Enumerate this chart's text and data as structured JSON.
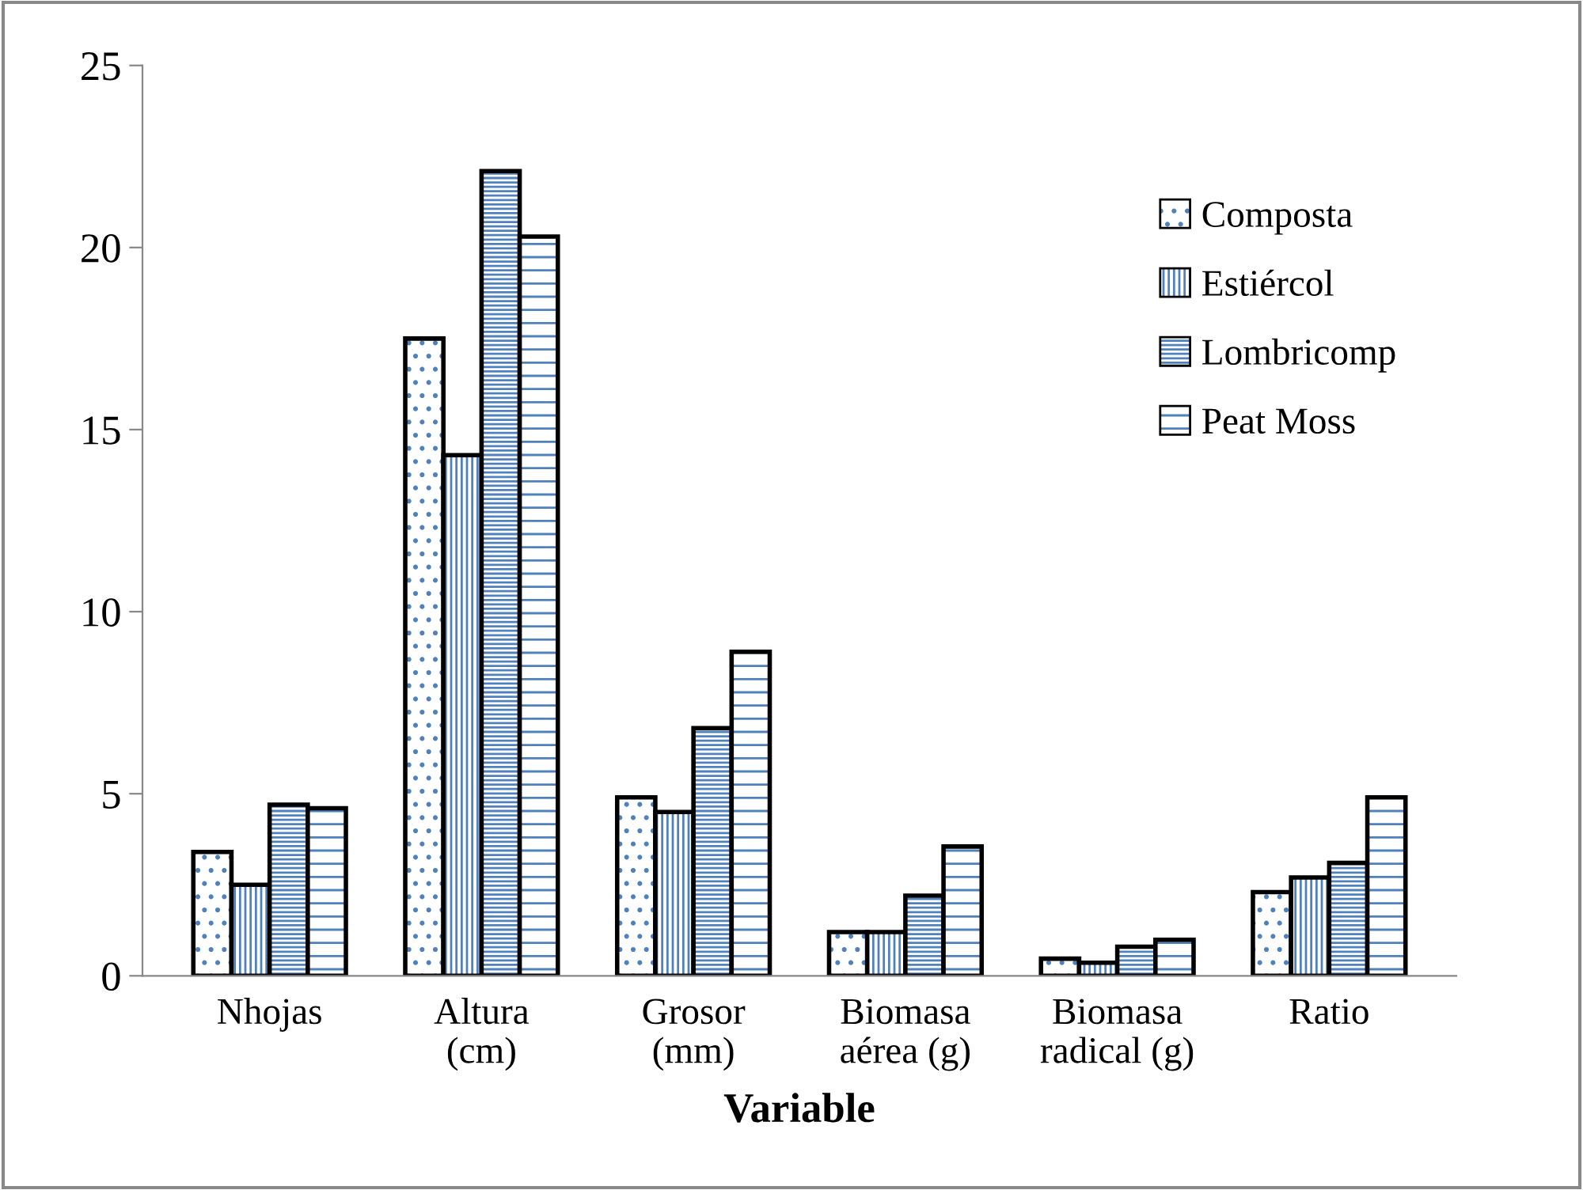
{
  "chart_data": {
    "type": "bar",
    "xlabel": "Variable",
    "categories": [
      "Nhojas",
      "Altura\n(cm)",
      "Grosor\n(mm)",
      "Biomasa\naérea (g)",
      "Biomasa\nradical (g)",
      "Ratio"
    ],
    "series": [
      {
        "name": "Composta",
        "color": "#000000",
        "values": [
          3.4,
          17.5,
          4.9,
          1.2,
          0.47,
          2.3
        ]
      },
      {
        "name": "Estiércol",
        "color": "#000000",
        "values": [
          2.5,
          14.3,
          4.5,
          1.2,
          0.36,
          2.7
        ]
      },
      {
        "name": "Lombricomp",
        "color": "#000000",
        "values": [
          4.7,
          22.1,
          6.8,
          2.2,
          0.8,
          3.1
        ]
      },
      {
        "name": "Peat Moss",
        "color": "#000000",
        "values": [
          4.6,
          20.3,
          8.9,
          3.55,
          0.99,
          4.9
        ]
      }
    ],
    "ylim": [
      0,
      25
    ],
    "yticks": [
      0,
      5,
      10,
      15,
      20,
      25
    ],
    "grid": false,
    "legend": "right"
  }
}
